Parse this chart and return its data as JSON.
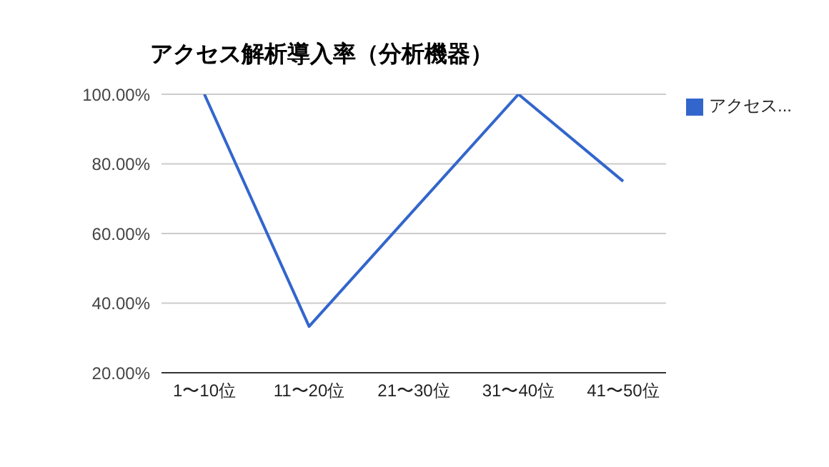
{
  "chart_data": {
    "type": "line",
    "title": "アクセス解析導入率（分析機器）",
    "categories": [
      "1〜10位",
      "11〜20位",
      "21〜30位",
      "31〜40位",
      "41〜50位"
    ],
    "series": [
      {
        "name": "アクセス...",
        "color": "#3366cc",
        "values": [
          100,
          33.3,
          66.7,
          100,
          75
        ]
      }
    ],
    "ylim": [
      20,
      100
    ],
    "yticks": [
      {
        "value": 20,
        "label": "20.00%"
      },
      {
        "value": 40,
        "label": "40.00%"
      },
      {
        "value": 60,
        "label": "60.00%"
      },
      {
        "value": 80,
        "label": "80.00%"
      },
      {
        "value": 100,
        "label": "100.00%"
      }
    ],
    "grid": "y",
    "legend": "top right",
    "marker": "none",
    "line_style": "solid"
  }
}
